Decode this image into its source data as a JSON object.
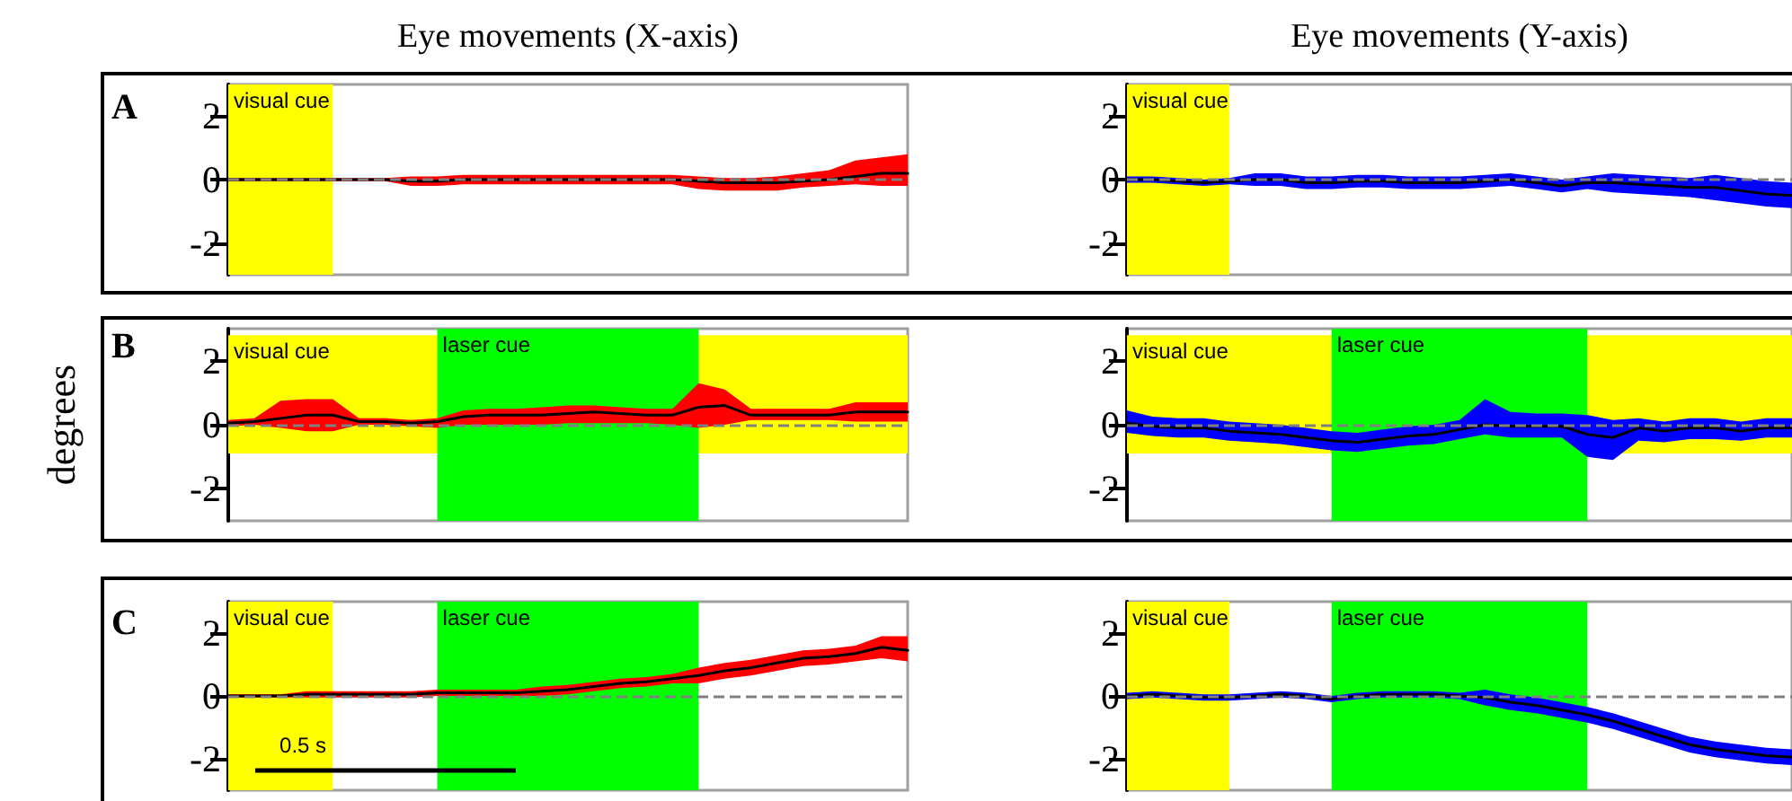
{
  "chart_data": [
    {
      "type": "line",
      "color": "#ff0000",
      "title": "Eye movements (X-axis)",
      "annotations": [
        "A",
        "visual cue"
      ],
      "ylim": [
        -3,
        3
      ],
      "yticks": [
        -2,
        0,
        2
      ],
      "tick_labels": "y",
      "marker": "none",
      "line_style": "solid",
      "categories": [
        null,
        null,
        null,
        null,
        null,
        null,
        null,
        null,
        null,
        null,
        null,
        null,
        null,
        null,
        null,
        null,
        null,
        null,
        null,
        null,
        null,
        null,
        null,
        null,
        null,
        null,
        null
      ],
      "ref_lines": [
        {
          "axis": "y",
          "value": 0,
          "color": "#808080",
          "line_style": "dashed"
        }
      ],
      "series": [
        {
          "color": "#000000",
          "values": [
            0,
            0,
            0,
            0,
            0,
            0,
            0,
            -0.05,
            -0.05,
            0,
            0,
            0,
            0,
            0,
            0,
            0,
            0,
            0,
            -0.05,
            -0.1,
            -0.1,
            -0.1,
            -0.05,
            0,
            0.1,
            0.2,
            0.2
          ],
          "lower": [
            -0.05,
            -0.05,
            -0.05,
            -0.05,
            -0.05,
            -0.05,
            -0.05,
            -0.2,
            -0.2,
            -0.15,
            -0.15,
            -0.15,
            -0.15,
            -0.15,
            -0.15,
            -0.15,
            -0.15,
            -0.15,
            -0.3,
            -0.35,
            -0.35,
            -0.35,
            -0.25,
            -0.2,
            -0.15,
            -0.2,
            -0.2
          ],
          "upper": [
            0.05,
            0.05,
            0.05,
            0.05,
            0.05,
            0.05,
            0.05,
            0.1,
            0.1,
            0.15,
            0.15,
            0.15,
            0.15,
            0.15,
            0.15,
            0.15,
            0.15,
            0.15,
            0.1,
            0.05,
            0.05,
            0.1,
            0.2,
            0.3,
            0.6,
            0.7,
            0.8
          ]
        }
      ]
    },
    {
      "type": "line",
      "color": "#0000ff",
      "title": "Eye movements (Y-axis)",
      "annotations": [
        "visual cue"
      ],
      "ylim": [
        -3,
        3
      ],
      "yticks": [
        -2,
        0,
        2
      ],
      "tick_labels": "y",
      "marker": "none",
      "line_style": "solid",
      "categories": [
        null,
        null,
        null,
        null,
        null,
        null,
        null,
        null,
        null,
        null,
        null,
        null,
        null,
        null,
        null,
        null,
        null,
        null,
        null,
        null,
        null,
        null,
        null,
        null,
        null,
        null,
        null
      ],
      "ref_lines": [
        {
          "axis": "y",
          "value": 0,
          "color": "#808080",
          "line_style": "dashed"
        }
      ],
      "series": [
        {
          "color": "#000000",
          "values": [
            0,
            0,
            -0.05,
            -0.1,
            -0.05,
            0,
            0,
            -0.1,
            -0.1,
            -0.05,
            -0.05,
            -0.1,
            -0.1,
            -0.1,
            -0.05,
            0,
            -0.1,
            -0.2,
            -0.1,
            -0.1,
            -0.15,
            -0.2,
            -0.25,
            -0.25,
            -0.35,
            -0.45,
            -0.5
          ],
          "lower": [
            -0.1,
            -0.1,
            -0.15,
            -0.2,
            -0.15,
            -0.2,
            -0.2,
            -0.3,
            -0.3,
            -0.25,
            -0.25,
            -0.3,
            -0.3,
            -0.3,
            -0.25,
            -0.2,
            -0.3,
            -0.4,
            -0.3,
            -0.4,
            -0.45,
            -0.5,
            -0.55,
            -0.65,
            -0.75,
            -0.85,
            -0.9
          ],
          "upper": [
            0.1,
            0.1,
            0.05,
            0,
            0.05,
            0.2,
            0.2,
            0.1,
            0.1,
            0.15,
            0.15,
            0.1,
            0.1,
            0.1,
            0.15,
            0.2,
            0.1,
            0,
            0.1,
            0.2,
            0.15,
            0.1,
            0.05,
            0.15,
            0.05,
            -0.05,
            -0.1
          ]
        }
      ]
    },
    {
      "type": "line",
      "color": "#ff0000",
      "ylabel": "degrees",
      "annotations": [
        "B",
        "laser cue"
      ],
      "ylim": [
        -3,
        3
      ],
      "yticks": [
        -2,
        0,
        2
      ],
      "tick_labels": "y",
      "marker": "none",
      "line_style": "solid",
      "categories": [
        null,
        null,
        null,
        null,
        null,
        null,
        null,
        null,
        null,
        null,
        null,
        null,
        null,
        null,
        null,
        null,
        null,
        null,
        null,
        null,
        null,
        null,
        null,
        null,
        null,
        null,
        null
      ],
      "bands": [
        {
          "axis": "y",
          "from": -0.9,
          "to": 2.8,
          "label": "visual cue",
          "color": "#ffff00"
        }
      ],
      "ref_lines": [
        {
          "axis": "y",
          "value": 0,
          "color": "#808080",
          "line_style": "dashed"
        }
      ],
      "series": [
        {
          "color": "#000000",
          "values": [
            0.05,
            0.1,
            0.2,
            0.3,
            0.3,
            0.1,
            0.1,
            0.05,
            0.1,
            0.25,
            0.3,
            0.3,
            0.3,
            0.35,
            0.4,
            0.35,
            0.3,
            0.3,
            0.55,
            0.6,
            0.3,
            0.3,
            0.3,
            0.3,
            0.4,
            0.4,
            0.4
          ],
          "lower": [
            -0.05,
            0,
            -0.1,
            -0.2,
            -0.2,
            0,
            0,
            -0.05,
            -0.1,
            0,
            0,
            0,
            0,
            0.05,
            0.05,
            0.05,
            0.05,
            0,
            -0.1,
            0,
            0.15,
            0.15,
            0.15,
            0.15,
            0.1,
            0.1,
            0.1
          ],
          "upper": [
            0.15,
            0.2,
            0.75,
            0.8,
            0.8,
            0.2,
            0.2,
            0.15,
            0.2,
            0.45,
            0.5,
            0.5,
            0.55,
            0.6,
            0.6,
            0.55,
            0.5,
            0.5,
            1.3,
            1.1,
            0.5,
            0.5,
            0.5,
            0.5,
            0.7,
            0.7,
            0.7
          ]
        }
      ]
    },
    {
      "type": "line",
      "color": "#0000ff",
      "annotations": [
        "laser cue"
      ],
      "ylim": [
        -3,
        3
      ],
      "yticks": [
        -2,
        0,
        2
      ],
      "tick_labels": "y",
      "marker": "none",
      "line_style": "solid",
      "categories": [
        null,
        null,
        null,
        null,
        null,
        null,
        null,
        null,
        null,
        null,
        null,
        null,
        null,
        null,
        null,
        null,
        null,
        null,
        null,
        null,
        null,
        null,
        null,
        null,
        null,
        null,
        null
      ],
      "bands": [
        {
          "axis": "y",
          "from": -0.9,
          "to": 2.8,
          "label": "visual cue",
          "color": "#ffff00"
        }
      ],
      "ref_lines": [
        {
          "axis": "y",
          "value": 0,
          "color": "#808080",
          "line_style": "dashed"
        }
      ],
      "series": [
        {
          "color": "#000000",
          "values": [
            0.05,
            -0.05,
            -0.1,
            -0.1,
            -0.2,
            -0.25,
            -0.3,
            -0.4,
            -0.5,
            -0.55,
            -0.45,
            -0.35,
            -0.3,
            -0.15,
            0,
            -0.05,
            -0.05,
            -0.05,
            -0.3,
            -0.4,
            -0.1,
            -0.2,
            -0.1,
            -0.1,
            -0.2,
            -0.1,
            -0.1
          ],
          "lower": [
            -0.25,
            -0.35,
            -0.4,
            -0.4,
            -0.5,
            -0.55,
            -0.6,
            -0.7,
            -0.8,
            -0.85,
            -0.75,
            -0.65,
            -0.6,
            -0.45,
            -0.3,
            -0.4,
            -0.4,
            -0.4,
            -1.0,
            -1.1,
            -0.5,
            -0.55,
            -0.45,
            -0.45,
            -0.5,
            -0.4,
            -0.4
          ],
          "upper": [
            0.45,
            0.25,
            0.2,
            0.2,
            0.1,
            0.05,
            0,
            -0.1,
            -0.2,
            -0.25,
            -0.15,
            -0.05,
            0,
            0.15,
            0.8,
            0.4,
            0.35,
            0.35,
            0.3,
            0.15,
            0.2,
            0.1,
            0.2,
            0.2,
            0.1,
            0.2,
            0.2
          ]
        }
      ]
    },
    {
      "type": "line",
      "color": "#ff0000",
      "annotations": [
        "C",
        "visual cue",
        "laser cue",
        "0.5 s"
      ],
      "ylim": [
        -3,
        3
      ],
      "yticks": [
        -2,
        0,
        2
      ],
      "tick_labels": "y",
      "marker": "none",
      "line_style": "solid",
      "categories": [
        null,
        null,
        null,
        null,
        null,
        null,
        null,
        null,
        null,
        null,
        null,
        null,
        null,
        null,
        null,
        null,
        null,
        null,
        null,
        null,
        null,
        null,
        null,
        null,
        null,
        null,
        null
      ],
      "ref_lines": [
        {
          "axis": "y",
          "value": 0,
          "color": "#808080",
          "line_style": "dashed"
        }
      ],
      "series": [
        {
          "color": "#000000",
          "values": [
            0,
            0,
            0,
            0.05,
            0.05,
            0.05,
            0.05,
            0.05,
            0.1,
            0.1,
            0.1,
            0.1,
            0.15,
            0.2,
            0.3,
            0.4,
            0.45,
            0.55,
            0.65,
            0.8,
            0.9,
            1.05,
            1.2,
            1.25,
            1.35,
            1.55,
            1.45
          ],
          "lower": [
            -0.05,
            -0.05,
            -0.05,
            -0.05,
            -0.05,
            -0.05,
            -0.05,
            -0.05,
            0,
            0,
            0,
            0,
            0,
            0.05,
            0.15,
            0.25,
            0.3,
            0.4,
            0.4,
            0.55,
            0.65,
            0.8,
            0.95,
            1.0,
            1.1,
            1.2,
            1.1
          ],
          "upper": [
            0.05,
            0.05,
            0.05,
            0.15,
            0.15,
            0.15,
            0.15,
            0.15,
            0.2,
            0.2,
            0.2,
            0.2,
            0.3,
            0.35,
            0.45,
            0.55,
            0.6,
            0.7,
            0.9,
            1.05,
            1.15,
            1.3,
            1.45,
            1.5,
            1.6,
            1.9,
            1.9
          ]
        }
      ]
    },
    {
      "type": "line",
      "color": "#0000ff",
      "annotations": [
        "visual cue",
        "laser cue"
      ],
      "ylim": [
        -3,
        3
      ],
      "yticks": [
        -2,
        0,
        2
      ],
      "tick_labels": "y",
      "marker": "none",
      "line_style": "solid",
      "categories": [
        null,
        null,
        null,
        null,
        null,
        null,
        null,
        null,
        null,
        null,
        null,
        null,
        null,
        null,
        null,
        null,
        null,
        null,
        null,
        null,
        null,
        null,
        null,
        null,
        null,
        null,
        null
      ],
      "ref_lines": [
        {
          "axis": "y",
          "value": 0,
          "color": "#808080",
          "line_style": "dashed"
        }
      ],
      "series": [
        {
          "color": "#000000",
          "values": [
            0,
            0.05,
            0,
            -0.05,
            -0.05,
            0,
            0.05,
            0,
            -0.1,
            0,
            0.05,
            0.05,
            0.05,
            0,
            -0.05,
            -0.2,
            -0.3,
            -0.45,
            -0.6,
            -0.8,
            -1.05,
            -1.3,
            -1.55,
            -1.7,
            -1.8,
            -1.9,
            -1.95
          ],
          "lower": [
            -0.1,
            -0.05,
            -0.1,
            -0.15,
            -0.15,
            -0.1,
            -0.05,
            -0.1,
            -0.2,
            -0.1,
            -0.05,
            -0.05,
            -0.05,
            -0.1,
            -0.3,
            -0.45,
            -0.55,
            -0.7,
            -0.85,
            -1.05,
            -1.3,
            -1.55,
            -1.8,
            -1.95,
            -2.05,
            -2.15,
            -2.2
          ],
          "upper": [
            0.1,
            0.15,
            0.1,
            0.05,
            0.05,
            0.1,
            0.15,
            0.1,
            0,
            0.1,
            0.15,
            0.15,
            0.15,
            0.1,
            0.2,
            0.05,
            -0.05,
            -0.2,
            -0.35,
            -0.55,
            -0.8,
            -1.05,
            -1.3,
            -1.45,
            -1.55,
            -1.65,
            -1.7
          ]
        }
      ]
    }
  ]
}
